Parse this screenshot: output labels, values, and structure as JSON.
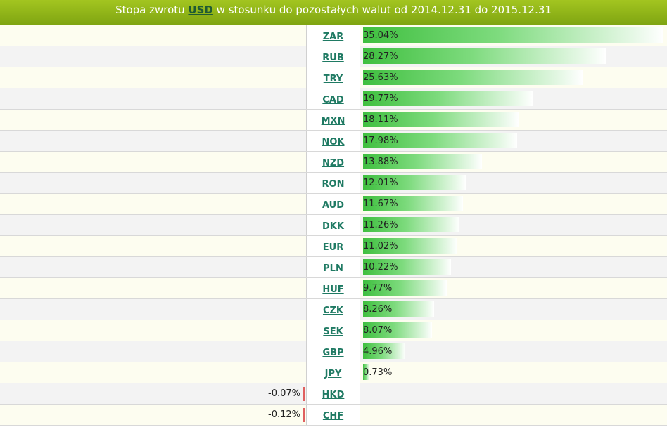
{
  "header": {
    "prefix": "Stopa zwrotu",
    "base_currency": "USD",
    "suffix": "w stosunku do pozostałych walut od 2014.12.31 do 2015.12.31"
  },
  "colors": {
    "header": "#8fb51a",
    "bar_positive": "#3fbf3f",
    "bar_negative": "#e06060",
    "link": "#1f7a63"
  },
  "chart_data": {
    "type": "bar",
    "orientation": "horizontal",
    "categories": [
      "ZAR",
      "RUB",
      "TRY",
      "CAD",
      "MXN",
      "NOK",
      "NZD",
      "RON",
      "AUD",
      "DKK",
      "EUR",
      "PLN",
      "HUF",
      "CZK",
      "SEK",
      "GBP",
      "JPY",
      "HKD",
      "CHF"
    ],
    "values": [
      35.04,
      28.27,
      25.63,
      19.77,
      18.11,
      17.98,
      13.88,
      12.01,
      11.67,
      11.26,
      11.02,
      10.22,
      9.77,
      8.26,
      8.07,
      4.96,
      0.73,
      -0.07,
      -0.12
    ],
    "labels": [
      "35.04%",
      "28.27%",
      "25.63%",
      "19.77%",
      "18.11%",
      "17.98%",
      "13.88%",
      "12.01%",
      "11.67%",
      "11.26%",
      "11.02%",
      "10.22%",
      "9.77%",
      "8.26%",
      "8.07%",
      "4.96%",
      "0.73%",
      "-0.07%",
      "-0.12%"
    ],
    "unit": "%"
  }
}
